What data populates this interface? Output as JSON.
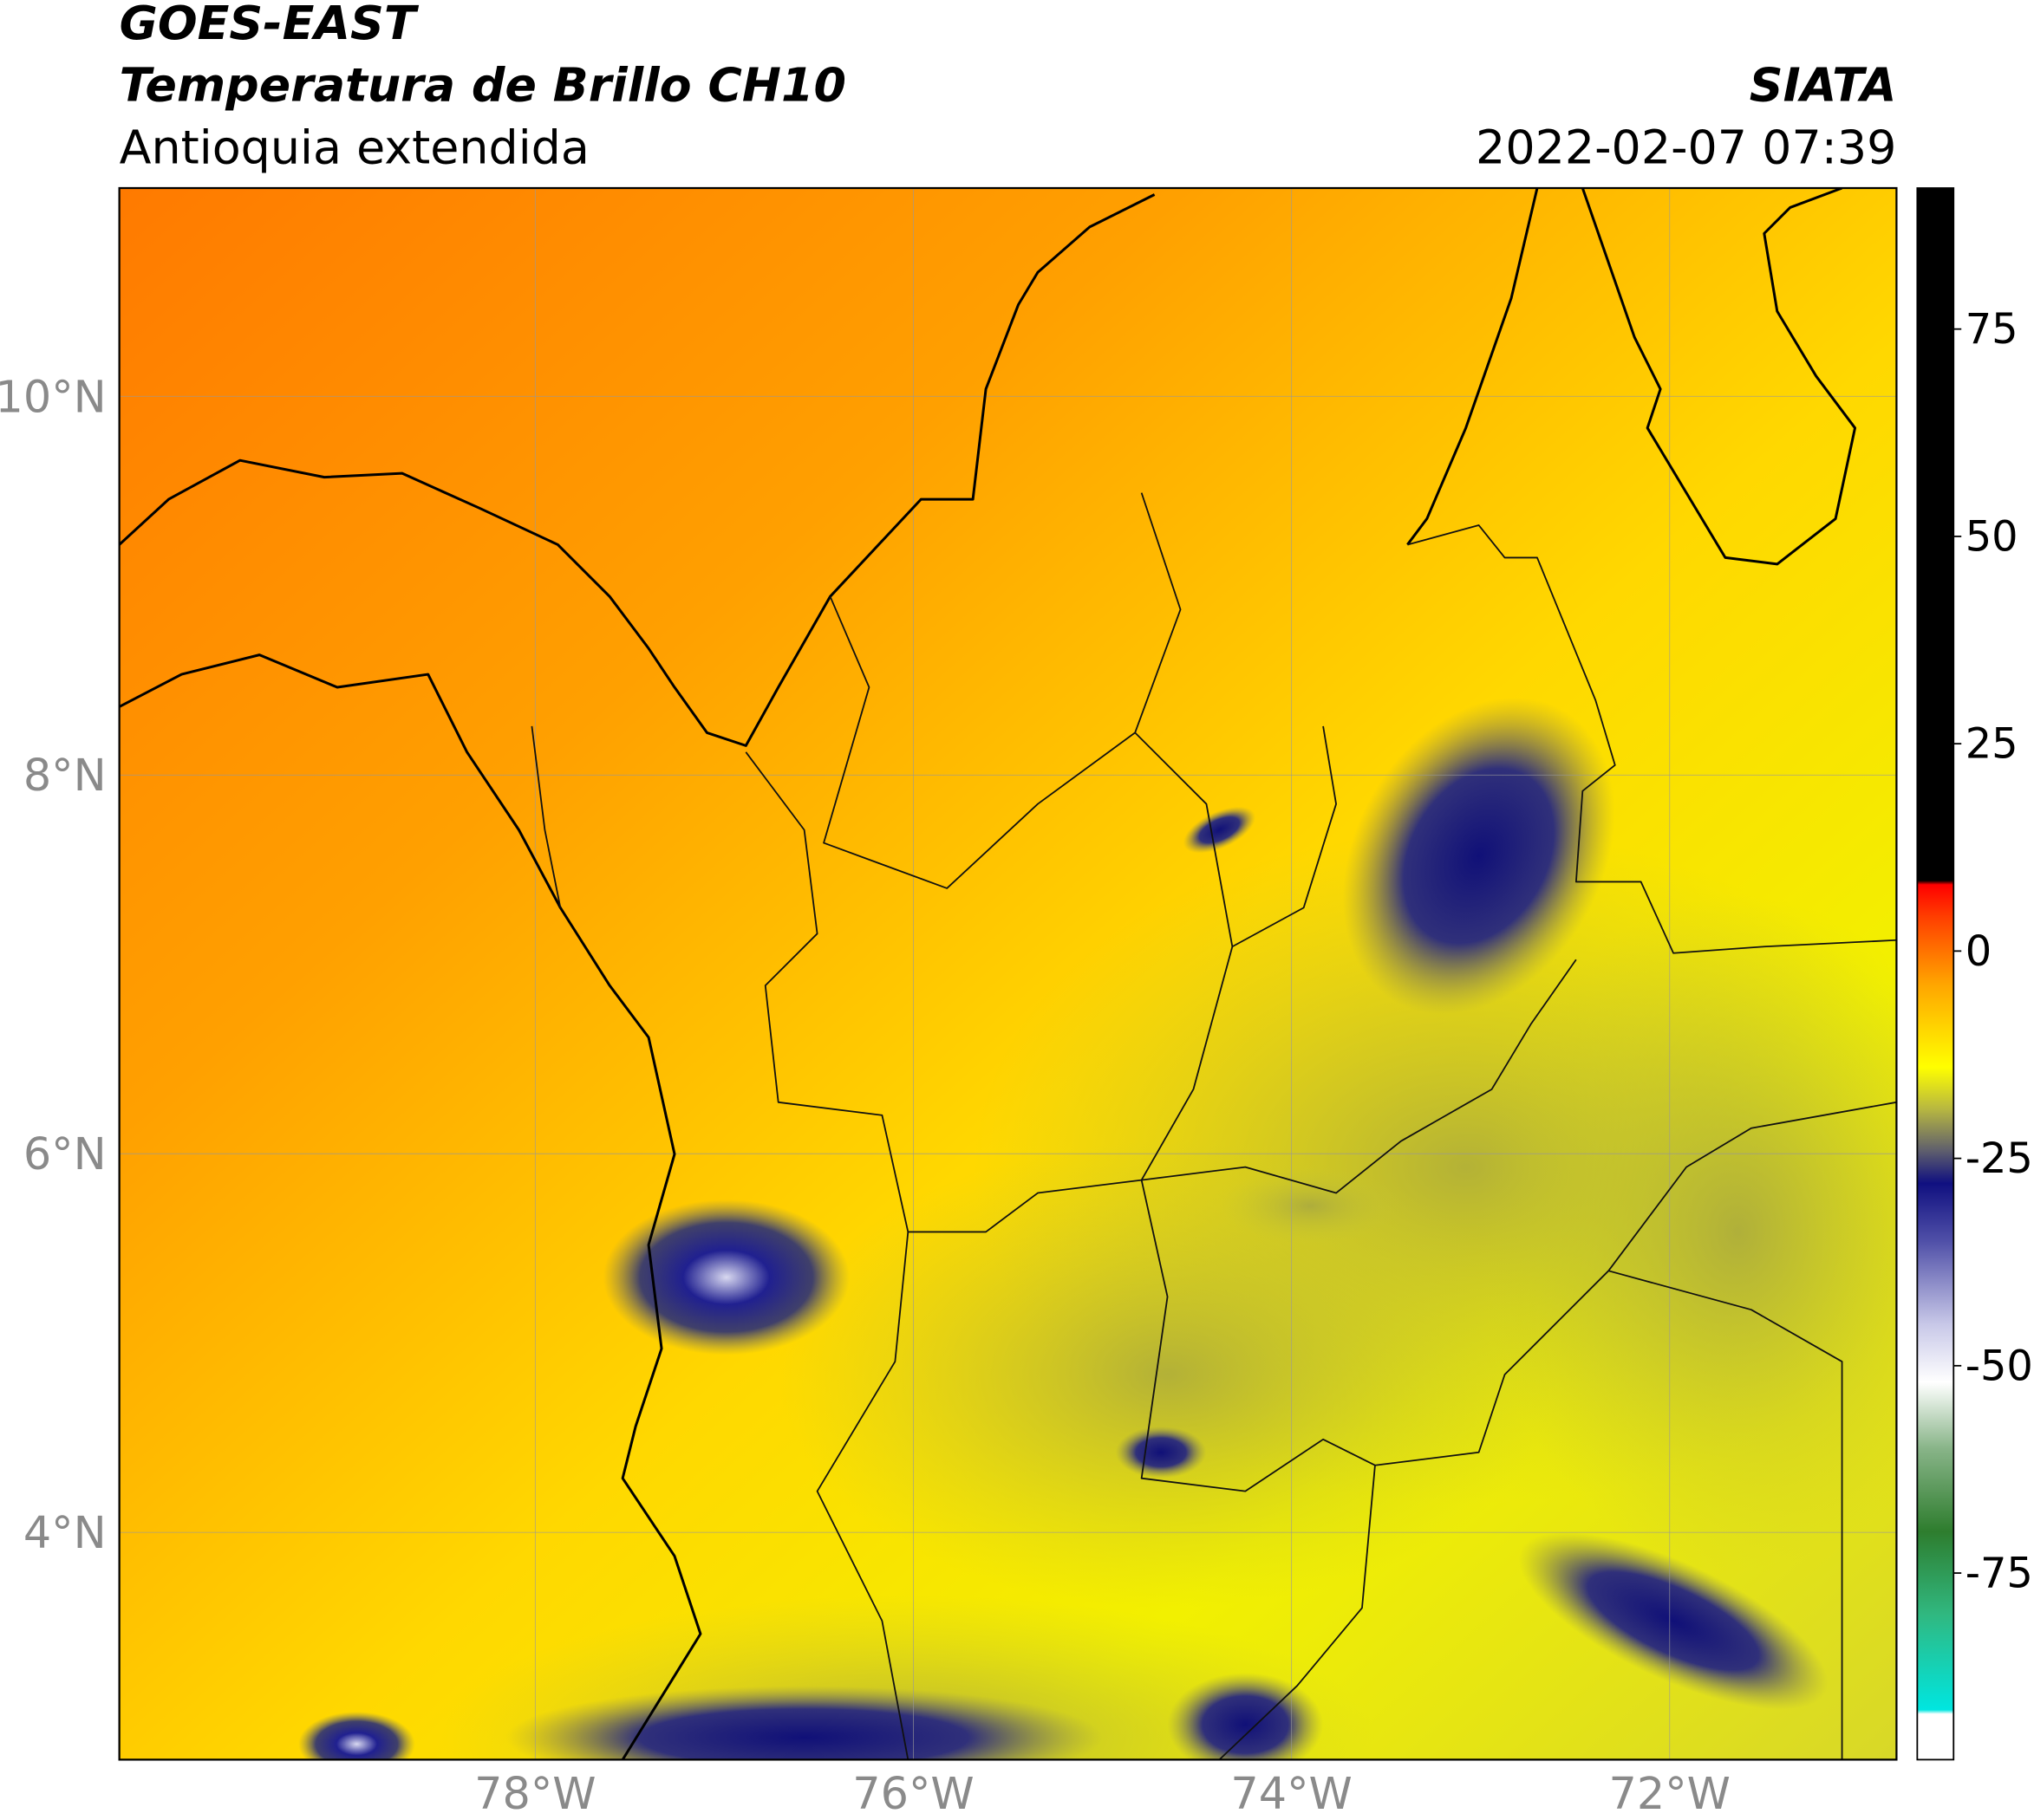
{
  "header": {
    "title": "GOES-EAST",
    "subtitle": "Temperatura de Brillo CH10",
    "region": "Antioquia extendida",
    "source": "SIATA",
    "timestamp": "2022-02-07 07:39"
  },
  "map": {
    "xlim": [
      -80.2,
      -70.8
    ],
    "ylim": [
      2.8,
      11.1
    ],
    "xticks": [
      {
        "value": -78,
        "label": "78°W"
      },
      {
        "value": -76,
        "label": "76°W"
      },
      {
        "value": -74,
        "label": "74°W"
      },
      {
        "value": -72,
        "label": "72°W"
      }
    ],
    "yticks": [
      {
        "value": 4,
        "label": "4°N"
      },
      {
        "value": 6,
        "label": "6°N"
      },
      {
        "value": 8,
        "label": "8°N"
      },
      {
        "value": 10,
        "label": "10°N"
      }
    ],
    "grid": true
  },
  "colorbar": {
    "lim": [
      -97.5,
      92
    ],
    "ticks": [
      -75,
      -50,
      -25,
      0,
      25,
      50,
      75
    ],
    "stops": [
      {
        "value": -97.5,
        "color": "#ffffff"
      },
      {
        "value": -92,
        "color": "#ffffff"
      },
      {
        "value": -91.5,
        "color": "#00e6e0"
      },
      {
        "value": -80,
        "color": "#30b880"
      },
      {
        "value": -70,
        "color": "#2e7d2e"
      },
      {
        "value": -60,
        "color": "#88b488"
      },
      {
        "value": -52,
        "color": "#ffffff"
      },
      {
        "value": -45,
        "color": "#c8c8e8"
      },
      {
        "value": -35,
        "color": "#5050a8"
      },
      {
        "value": -28,
        "color": "#101080"
      },
      {
        "value": -24,
        "color": "#60606c"
      },
      {
        "value": -19,
        "color": "#b8b840"
      },
      {
        "value": -14,
        "color": "#ffff00"
      },
      {
        "value": -4,
        "color": "#ffa500"
      },
      {
        "value": 4,
        "color": "#ff4000"
      },
      {
        "value": 8,
        "color": "#ff0000"
      },
      {
        "value": 8.5,
        "color": "#000000"
      },
      {
        "value": 92,
        "color": "#000000"
      }
    ]
  }
}
